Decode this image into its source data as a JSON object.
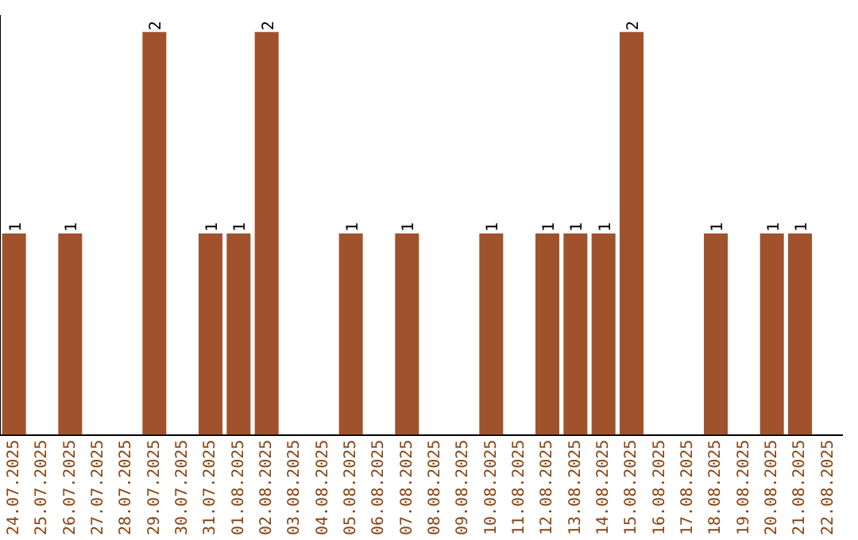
{
  "chart_data": {
    "type": "bar",
    "categories": [
      "24.07.2025",
      "25.07.2025",
      "26.07.2025",
      "27.07.2025",
      "28.07.2025",
      "29.07.2025",
      "30.07.2025",
      "31.07.2025",
      "01.08.2025",
      "02.08.2025",
      "03.08.2025",
      "04.08.2025",
      "05.08.2025",
      "06.08.2025",
      "07.08.2025",
      "08.08.2025",
      "09.08.2025",
      "10.08.2025",
      "11.08.2025",
      "12.08.2025",
      "13.08.2025",
      "14.08.2025",
      "15.08.2025",
      "16.08.2025",
      "17.08.2025",
      "18.08.2025",
      "19.08.2025",
      "20.08.2025",
      "21.08.2025",
      "22.08.2025"
    ],
    "values": [
      1,
      0,
      1,
      0,
      0,
      2,
      0,
      1,
      1,
      2,
      0,
      0,
      1,
      0,
      1,
      0,
      0,
      1,
      0,
      1,
      1,
      1,
      2,
      0,
      0,
      1,
      0,
      1,
      1,
      0
    ],
    "value_labels": [
      "1",
      null,
      "1",
      null,
      null,
      "2",
      null,
      "1",
      "1",
      "2",
      null,
      null,
      "1",
      null,
      "1",
      null,
      null,
      "1",
      null,
      "1",
      "1",
      "1",
      "2",
      null,
      null,
      "1",
      null,
      "1",
      "1",
      null
    ],
    "color": "#a0522d",
    "ylim": [
      0,
      2.08
    ],
    "tick_labels": "x",
    "grid": false,
    "legend": false
  }
}
